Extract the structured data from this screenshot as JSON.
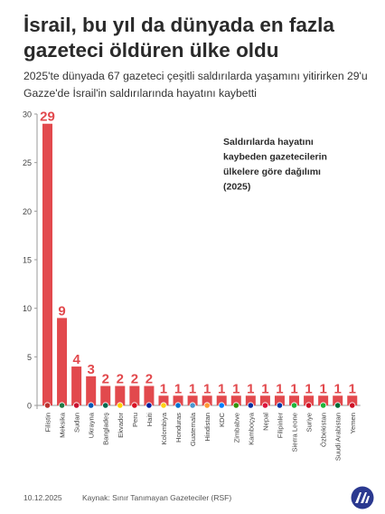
{
  "header": {
    "title": "İsrail, bu yıl da dünyada en fazla gazeteci öldüren ülke oldu",
    "subtitle": "2025'te dünyada 67 gazeteci çeşitli saldırılarda yaşamını yitirirken 29'u Gazze'de İsrail'in saldırılarında hayatını kaybetti"
  },
  "footer": {
    "date": "10.12.2025",
    "source": "Kaynak: Sınır Tanımayan Gazeteciler (RSF)",
    "logo": "AA"
  },
  "chart_data": {
    "type": "bar",
    "title": "Saldırılarda hayatını kaybeden gazetecilerin ülkelere göre dağılımı (2025)",
    "categories": [
      "Filistin",
      "Meksika",
      "Sudan",
      "Ukrayna",
      "Bangladeş",
      "Ekvador",
      "Peru",
      "Haiti",
      "Kolombiya",
      "Honduras",
      "Guatemala",
      "Hindistan",
      "KDC",
      "Zimbabve",
      "Kamboçya",
      "Nepal",
      "Filipinler",
      "Sierra Leone",
      "Suriye",
      "Özbekistan",
      "Suudi Arabistan",
      "Yemen"
    ],
    "values": [
      29,
      9,
      4,
      3,
      2,
      2,
      2,
      2,
      1,
      1,
      1,
      1,
      1,
      1,
      1,
      1,
      1,
      1,
      1,
      1,
      1,
      1
    ],
    "ylim": [
      0,
      30
    ],
    "yticks": [
      0,
      5,
      10,
      15,
      20,
      25,
      30
    ],
    "grid": false,
    "colors": {
      "bar": "#e2494d",
      "value_label": "#e2494d",
      "axis": "#9a9a9a",
      "tick_label": "#444444"
    },
    "flag_colors": [
      "#b9312d",
      "#1f7a45",
      "#c8102e",
      "#0057b7",
      "#006a4e",
      "#ffd100",
      "#d91023",
      "#00209f",
      "#fcd116",
      "#0073cf",
      "#4997d0",
      "#ff9933",
      "#007fff",
      "#319208",
      "#032ea1",
      "#dc143c",
      "#0038a8",
      "#1eb53a",
      "#ce1126",
      "#1eb53a",
      "#006c35",
      "#ce1126"
    ]
  }
}
